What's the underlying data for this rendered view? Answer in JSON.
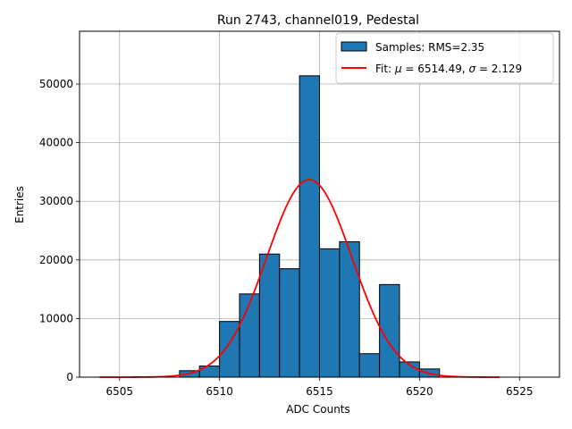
{
  "chart_data": {
    "type": "bar",
    "title": "Run 2743, channel019, Pedestal",
    "xlabel": "ADC Counts",
    "ylabel": "Entries",
    "xlim": [
      6503.0,
      6527.0
    ],
    "ylim": [
      0,
      59000
    ],
    "grid": true,
    "xticks": [
      6505,
      6510,
      6515,
      6520,
      6525
    ],
    "yticks": [
      0,
      10000,
      20000,
      30000,
      40000,
      50000
    ],
    "bin_width": 1,
    "bins": [
      {
        "left": 6508,
        "value": 1100
      },
      {
        "left": 6509,
        "value": 1900
      },
      {
        "left": 6510,
        "value": 9500
      },
      {
        "left": 6511,
        "value": 14200
      },
      {
        "left": 6512,
        "value": 21000
      },
      {
        "left": 6513,
        "value": 18500
      },
      {
        "left": 6514,
        "value": 51400
      },
      {
        "left": 6515,
        "value": 21900
      },
      {
        "left": 6516,
        "value": 23100
      },
      {
        "left": 6517,
        "value": 4000
      },
      {
        "left": 6518,
        "value": 15800
      },
      {
        "left": 6519,
        "value": 2600
      },
      {
        "left": 6520,
        "value": 1400
      }
    ],
    "fit": {
      "mu": 6514.49,
      "sigma": 2.129,
      "amplitude": 33700,
      "x_range": [
        6504,
        6524
      ]
    },
    "legend": {
      "position": "top-right",
      "entries": [
        {
          "label": "Samples: RMS=2.35",
          "kind": "patch"
        },
        {
          "label_prefix": "Fit: ",
          "mu_text": "μ",
          "mu_value": " = 6514.49, ",
          "sigma_text": "σ",
          "sigma_value": " = 2.129",
          "kind": "line"
        }
      ]
    },
    "colors": {
      "bar_fill": "#1f77b4",
      "bar_edge": "#000000",
      "fit_line": "#ff0000",
      "grid": "#b0b0b0"
    }
  }
}
